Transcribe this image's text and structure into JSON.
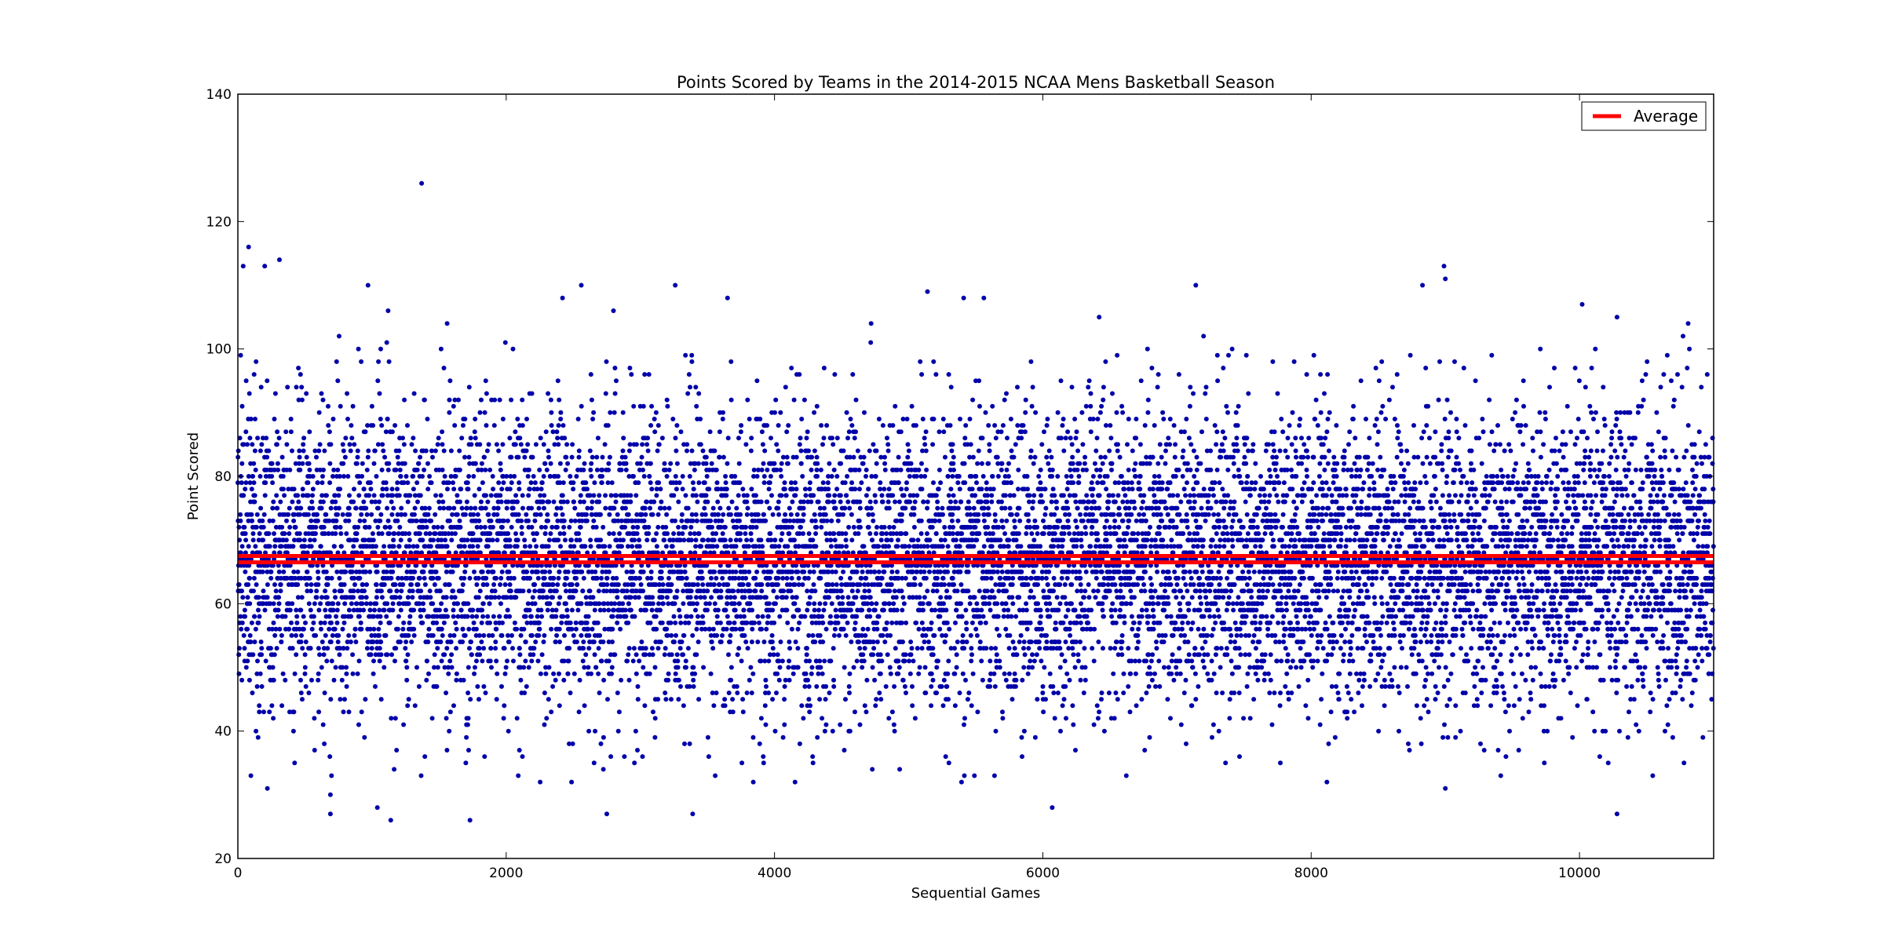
{
  "chart_data": {
    "type": "scatter",
    "title": "Points Scored by Teams in the 2014-2015 NCAA Mens Basketball Season",
    "xlabel": "Sequential Games",
    "ylabel": "Point Scored",
    "xlim": [
      0,
      11000
    ],
    "ylim": [
      20,
      140
    ],
    "xticks": [
      0,
      2000,
      4000,
      6000,
      8000,
      10000
    ],
    "yticks": [
      20,
      40,
      60,
      80,
      100,
      120,
      140
    ],
    "grid": false,
    "legend_position": "top-right",
    "series": [
      {
        "kind": "scatter",
        "color": "#0000aa",
        "point_count_approx": 11000,
        "value_range_approx": [
          26,
          126
        ],
        "center_approx": 67,
        "notable_points": [
          {
            "x": 1370,
            "y": 126
          },
          {
            "x": 80,
            "y": 116
          },
          {
            "x": 310,
            "y": 114
          },
          {
            "x": 40,
            "y": 113
          },
          {
            "x": 200,
            "y": 113
          },
          {
            "x": 8990,
            "y": 113
          },
          {
            "x": 9000,
            "y": 111
          },
          {
            "x": 970,
            "y": 110
          },
          {
            "x": 2560,
            "y": 110
          },
          {
            "x": 3260,
            "y": 110
          },
          {
            "x": 7140,
            "y": 110
          },
          {
            "x": 8830,
            "y": 110
          },
          {
            "x": 5140,
            "y": 109
          },
          {
            "x": 2420,
            "y": 108
          },
          {
            "x": 3650,
            "y": 108
          },
          {
            "x": 5410,
            "y": 108
          },
          {
            "x": 5560,
            "y": 108
          },
          {
            "x": 10020,
            "y": 107
          },
          {
            "x": 1120,
            "y": 106
          },
          {
            "x": 2800,
            "y": 106
          },
          {
            "x": 10280,
            "y": 105
          },
          {
            "x": 6420,
            "y": 105
          },
          {
            "x": 10810,
            "y": 104
          },
          {
            "x": 1560,
            "y": 104
          },
          {
            "x": 4720,
            "y": 104
          },
          {
            "x": 1730,
            "y": 26
          },
          {
            "x": 1140,
            "y": 26
          },
          {
            "x": 690,
            "y": 27
          },
          {
            "x": 2750,
            "y": 27
          },
          {
            "x": 3390,
            "y": 27
          },
          {
            "x": 10280,
            "y": 27
          },
          {
            "x": 6070,
            "y": 28
          },
          {
            "x": 1040,
            "y": 28
          },
          {
            "x": 690,
            "y": 30
          },
          {
            "x": 9000,
            "y": 31
          },
          {
            "x": 220,
            "y": 31
          },
          {
            "x": 7770,
            "y": 35
          },
          {
            "x": 5300,
            "y": 35
          },
          {
            "x": 10920,
            "y": 39
          }
        ]
      },
      {
        "name": "Average",
        "kind": "line",
        "color": "#ff0000",
        "y_values": [
          66.5,
          67.5
        ]
      }
    ]
  }
}
